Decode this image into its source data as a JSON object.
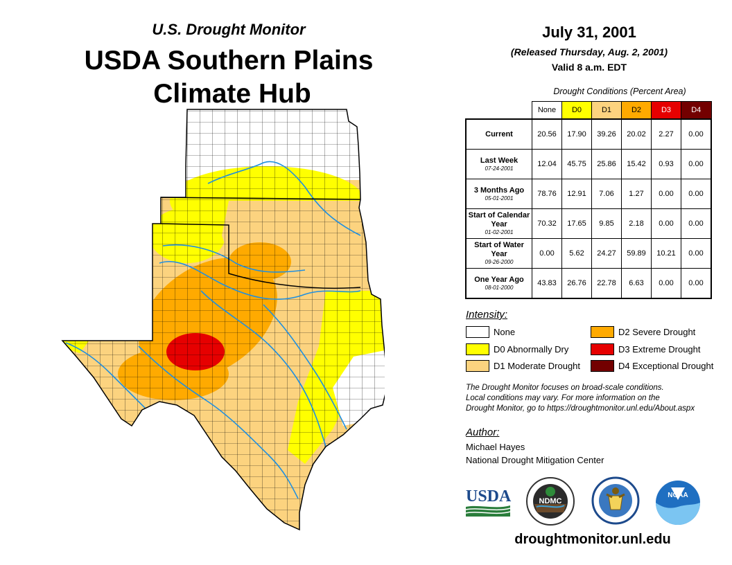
{
  "header": {
    "subtitle": "U.S. Drought Monitor",
    "title_line1": "USDA Southern Plains",
    "title_line2": "Climate Hub"
  },
  "date": {
    "main": "July 31, 2001",
    "released": "(Released Thursday, Aug. 2, 2001)",
    "valid": "Valid 8 a.m. EDT"
  },
  "stats_table": {
    "title": "Drought Conditions (Percent Area)",
    "columns": [
      {
        "label": "None",
        "color": "#ffffff",
        "text_color": "#000000"
      },
      {
        "label": "D0",
        "color": "#ffff00",
        "text_color": "#000000"
      },
      {
        "label": "D1",
        "color": "#fcd37f",
        "text_color": "#000000"
      },
      {
        "label": "D2",
        "color": "#ffaa00",
        "text_color": "#000000"
      },
      {
        "label": "D3",
        "color": "#e60000",
        "text_color": "#ffffff"
      },
      {
        "label": "D4",
        "color": "#730000",
        "text_color": "#ffffff"
      }
    ],
    "rows": [
      {
        "label": "Current",
        "date": "",
        "values": [
          "20.56",
          "17.90",
          "39.26",
          "20.02",
          "2.27",
          "0.00"
        ]
      },
      {
        "label": "Last Week",
        "date": "07-24-2001",
        "values": [
          "12.04",
          "45.75",
          "25.86",
          "15.42",
          "0.93",
          "0.00"
        ]
      },
      {
        "label": "3 Months Ago",
        "date": "05-01-2001",
        "values": [
          "78.76",
          "12.91",
          "7.06",
          "1.27",
          "0.00",
          "0.00"
        ]
      },
      {
        "label": "Start of Calendar Year",
        "date": "01-02-2001",
        "values": [
          "70.32",
          "17.65",
          "9.85",
          "2.18",
          "0.00",
          "0.00"
        ]
      },
      {
        "label": "Start of Water Year",
        "date": "09-26-2000",
        "values": [
          "0.00",
          "5.62",
          "24.27",
          "59.89",
          "10.21",
          "0.00"
        ]
      },
      {
        "label": "One Year Ago",
        "date": "08-01-2000",
        "values": [
          "43.83",
          "26.76",
          "22.78",
          "6.63",
          "0.00",
          "0.00"
        ]
      }
    ]
  },
  "legend": {
    "heading": "Intensity:",
    "items": [
      {
        "label": "None",
        "color": "#ffffff"
      },
      {
        "label": "D0 Abnormally Dry",
        "color": "#ffff00"
      },
      {
        "label": "D1 Moderate Drought",
        "color": "#fcd37f"
      },
      {
        "label": "D2 Severe Drought",
        "color": "#ffaa00"
      },
      {
        "label": "D3 Extreme Drought",
        "color": "#e60000"
      },
      {
        "label": "D4 Exceptional Drought",
        "color": "#730000"
      }
    ]
  },
  "note": {
    "line1": "The Drought Monitor focuses on broad-scale conditions.",
    "line2": "Local conditions may vary. For more information on the",
    "line3": "Drought Monitor, go to https://droughtmonitor.unl.edu/About.aspx"
  },
  "author": {
    "heading": "Author:",
    "name": "Michael Hayes",
    "org": "National Drought Mitigation Center"
  },
  "logos": {
    "usda": "USDA",
    "ndmc": "NDMC",
    "noaa": "NOAA"
  },
  "website": "droughtmonitor.unl.edu",
  "map_colors": {
    "none": "#ffffff",
    "d0": "#ffff00",
    "d1": "#fcd37f",
    "d2": "#ffaa00",
    "d3": "#e60000",
    "river": "#1f8fe0",
    "county": "#000000"
  }
}
